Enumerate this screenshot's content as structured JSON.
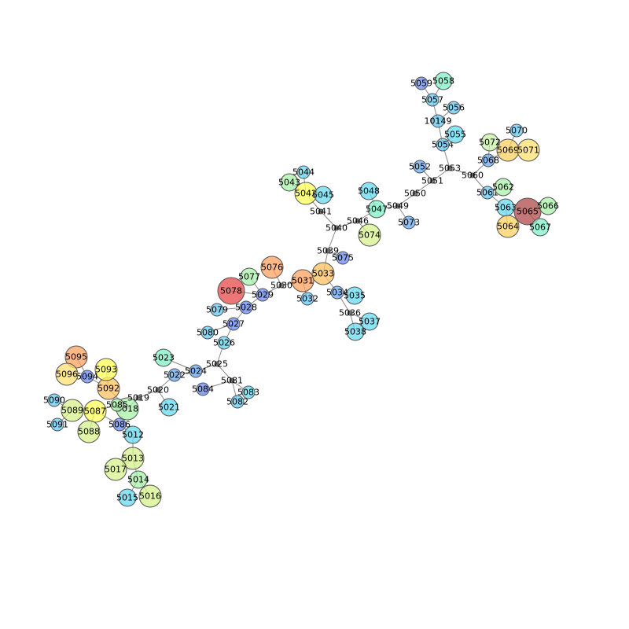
{
  "chart_data": {
    "type": "network",
    "nodes": [
      {
        "id": "5012",
        "color": "#66d9f0",
        "size": "m"
      },
      {
        "id": "5013",
        "color": "#d6f28a",
        "size": "l"
      },
      {
        "id": "5014",
        "color": "#a8f0a8",
        "size": "m"
      },
      {
        "id": "5015",
        "color": "#66d9f0",
        "size": "m"
      },
      {
        "id": "5016",
        "color": "#d6f28a",
        "size": "l"
      },
      {
        "id": "5017",
        "color": "#d6f28a",
        "size": "l"
      },
      {
        "id": "5018",
        "color": "#a8f0a8",
        "size": "l"
      },
      {
        "id": "5019",
        "color": "#555555",
        "size": "xs"
      },
      {
        "id": "5020",
        "color": "#555555",
        "size": "xs"
      },
      {
        "id": "5021",
        "color": "#66d9f0",
        "size": "m"
      },
      {
        "id": "5022",
        "color": "#6aa8f0",
        "size": "s"
      },
      {
        "id": "5023",
        "color": "#7ff0c8",
        "size": "m"
      },
      {
        "id": "5024",
        "color": "#6aa8f0",
        "size": "s"
      },
      {
        "id": "5025",
        "color": "#555555",
        "size": "xs"
      },
      {
        "id": "5026",
        "color": "#66d9f0",
        "size": "s"
      },
      {
        "id": "5027",
        "color": "#6a8af0",
        "size": "s"
      },
      {
        "id": "5028",
        "color": "#6a8af0",
        "size": "s"
      },
      {
        "id": "5029",
        "color": "#6a8af0",
        "size": "s"
      },
      {
        "id": "5030",
        "color": "#555555",
        "size": "xs"
      },
      {
        "id": "5031",
        "color": "#ffa060",
        "size": "l"
      },
      {
        "id": "5032",
        "color": "#66c8f0",
        "size": "s"
      },
      {
        "id": "5033",
        "color": "#ffc060",
        "size": "l"
      },
      {
        "id": "5034",
        "color": "#6aa8f0",
        "size": "s"
      },
      {
        "id": "5035",
        "color": "#66d9f0",
        "size": "m"
      },
      {
        "id": "5036",
        "color": "#555555",
        "size": "xs"
      },
      {
        "id": "5037",
        "color": "#66d9f0",
        "size": "m"
      },
      {
        "id": "5038",
        "color": "#66d9f0",
        "size": "m"
      },
      {
        "id": "5039",
        "color": "#555555",
        "size": "xs"
      },
      {
        "id": "5040",
        "color": "#555555",
        "size": "xs"
      },
      {
        "id": "5041",
        "color": "#555555",
        "size": "xs"
      },
      {
        "id": "5042",
        "color": "#ffff55",
        "size": "l"
      },
      {
        "id": "5043",
        "color": "#a8f0a8",
        "size": "m"
      },
      {
        "id": "5044",
        "color": "#66d9f0",
        "size": "s"
      },
      {
        "id": "5045",
        "color": "#66d9f0",
        "size": "m"
      },
      {
        "id": "5046",
        "color": "#555555",
        "size": "xs"
      },
      {
        "id": "5047",
        "color": "#7ff0c8",
        "size": "m"
      },
      {
        "id": "5048",
        "color": "#66d9f0",
        "size": "m"
      },
      {
        "id": "5049",
        "color": "#555555",
        "size": "xs"
      },
      {
        "id": "5050",
        "color": "#555555",
        "size": "xs"
      },
      {
        "id": "5051",
        "color": "#555555",
        "size": "xs"
      },
      {
        "id": "5052",
        "color": "#6aa8f0",
        "size": "s"
      },
      {
        "id": "5053",
        "color": "#555555",
        "size": "xs"
      },
      {
        "id": "5054",
        "color": "#66c8f0",
        "size": "s"
      },
      {
        "id": "5055",
        "color": "#66d9f0",
        "size": "m"
      },
      {
        "id": "10149",
        "color": "#66c8f0",
        "size": "s"
      },
      {
        "id": "5056",
        "color": "#66c8f0",
        "size": "s"
      },
      {
        "id": "5057",
        "color": "#66c8f0",
        "size": "s"
      },
      {
        "id": "5058",
        "color": "#7ff0c8",
        "size": "m"
      },
      {
        "id": "5059",
        "color": "#6a8af0",
        "size": "s"
      },
      {
        "id": "5060",
        "color": "#555555",
        "size": "xs"
      },
      {
        "id": "5061",
        "color": "#66c8f0",
        "size": "s"
      },
      {
        "id": "5062",
        "color": "#a8f0a8",
        "size": "m"
      },
      {
        "id": "5063",
        "color": "#66d9f0",
        "size": "m"
      },
      {
        "id": "5064",
        "color": "#ffd060",
        "size": "l"
      },
      {
        "id": "5065",
        "color": "#b04a4a",
        "size": "xl"
      },
      {
        "id": "5066",
        "color": "#a8f0a8",
        "size": "m"
      },
      {
        "id": "5067",
        "color": "#7ff0c8",
        "size": "m"
      },
      {
        "id": "5068",
        "color": "#6aa8f0",
        "size": "s"
      },
      {
        "id": "5069",
        "color": "#ffd060",
        "size": "l"
      },
      {
        "id": "5070",
        "color": "#66c8f0",
        "size": "s"
      },
      {
        "id": "5071",
        "color": "#ffe070",
        "size": "l"
      },
      {
        "id": "5072",
        "color": "#c8f0a8",
        "size": "m"
      },
      {
        "id": "5073",
        "color": "#6aa8f0",
        "size": "s"
      },
      {
        "id": "5074",
        "color": "#d6f28a",
        "size": "l"
      },
      {
        "id": "5075",
        "color": "#6a8af0",
        "size": "s"
      },
      {
        "id": "5076",
        "color": "#ffa060",
        "size": "l"
      },
      {
        "id": "5077",
        "color": "#a8f0a8",
        "size": "m"
      },
      {
        "id": "5078",
        "color": "#e84848",
        "size": "xl"
      },
      {
        "id": "5079",
        "color": "#66c8f0",
        "size": "s"
      },
      {
        "id": "5080",
        "color": "#66c8f0",
        "size": "s"
      },
      {
        "id": "5081",
        "color": "#555555",
        "size": "xs"
      },
      {
        "id": "5082",
        "color": "#66c8f0",
        "size": "s"
      },
      {
        "id": "5083",
        "color": "#66d9f0",
        "size": "s"
      },
      {
        "id": "5084",
        "color": "#6a8af0",
        "size": "s"
      },
      {
        "id": "5085",
        "color": "#a8f0a8",
        "size": "s"
      },
      {
        "id": "5086",
        "color": "#6a8af0",
        "size": "s"
      },
      {
        "id": "5087",
        "color": "#ffff55",
        "size": "l"
      },
      {
        "id": "5088",
        "color": "#d6f28a",
        "size": "l"
      },
      {
        "id": "5089",
        "color": "#d6f28a",
        "size": "l"
      },
      {
        "id": "5090",
        "color": "#66c8f0",
        "size": "s"
      },
      {
        "id": "5091",
        "color": "#66c8f0",
        "size": "s"
      },
      {
        "id": "5092",
        "color": "#ffc060",
        "size": "l"
      },
      {
        "id": "5093",
        "color": "#ffff55",
        "size": "l"
      },
      {
        "id": "5094",
        "color": "#6a8af0",
        "size": "s"
      },
      {
        "id": "5095",
        "color": "#ffa060",
        "size": "l"
      },
      {
        "id": "5096",
        "color": "#ffe070",
        "size": "l"
      }
    ],
    "edges": [
      [
        "5012",
        "5013"
      ],
      [
        "5013",
        "5017"
      ],
      [
        "5013",
        "5014"
      ],
      [
        "5014",
        "5015"
      ],
      [
        "5014",
        "5016"
      ],
      [
        "5012",
        "5086"
      ],
      [
        "5086",
        "5087"
      ],
      [
        "5087",
        "5088"
      ],
      [
        "5087",
        "5089"
      ],
      [
        "5089",
        "5090"
      ],
      [
        "5089",
        "5091"
      ],
      [
        "5087",
        "5085"
      ],
      [
        "5085",
        "5018"
      ],
      [
        "5018",
        "5019"
      ],
      [
        "5019",
        "5020"
      ],
      [
        "5020",
        "5021"
      ],
      [
        "5020",
        "5022"
      ],
      [
        "5022",
        "5024"
      ],
      [
        "5024",
        "5023"
      ],
      [
        "5024",
        "5025"
      ],
      [
        "5025",
        "5081"
      ],
      [
        "5081",
        "5082"
      ],
      [
        "5081",
        "5083"
      ],
      [
        "5081",
        "5084"
      ],
      [
        "5025",
        "5026"
      ],
      [
        "5026",
        "5027"
      ],
      [
        "5027",
        "5080"
      ],
      [
        "5027",
        "5028"
      ],
      [
        "5028",
        "5079"
      ],
      [
        "5028",
        "5029"
      ],
      [
        "5029",
        "5078"
      ],
      [
        "5029",
        "5077"
      ],
      [
        "5029",
        "5030"
      ],
      [
        "5030",
        "5076"
      ],
      [
        "5030",
        "5031"
      ],
      [
        "5031",
        "5032"
      ],
      [
        "5031",
        "5033"
      ],
      [
        "5033",
        "5034"
      ],
      [
        "5034",
        "5035"
      ],
      [
        "5034",
        "5036"
      ],
      [
        "5036",
        "5037"
      ],
      [
        "5036",
        "5038"
      ],
      [
        "5033",
        "5039"
      ],
      [
        "5039",
        "5075"
      ],
      [
        "5039",
        "5040"
      ],
      [
        "5040",
        "5041"
      ],
      [
        "5041",
        "5042"
      ],
      [
        "5042",
        "5043"
      ],
      [
        "5042",
        "5044"
      ],
      [
        "5042",
        "5045"
      ],
      [
        "5040",
        "5046"
      ],
      [
        "5046",
        "5074"
      ],
      [
        "5046",
        "5047"
      ],
      [
        "5047",
        "5048"
      ],
      [
        "5047",
        "5049"
      ],
      [
        "5049",
        "5073"
      ],
      [
        "5049",
        "5050"
      ],
      [
        "5050",
        "5051"
      ],
      [
        "5051",
        "5052"
      ],
      [
        "5051",
        "5053"
      ],
      [
        "5053",
        "5054"
      ],
      [
        "5054",
        "5055"
      ],
      [
        "5054",
        "10149"
      ],
      [
        "10149",
        "5056"
      ],
      [
        "10149",
        "5057"
      ],
      [
        "5057",
        "5058"
      ],
      [
        "5057",
        "5059"
      ],
      [
        "5053",
        "5060"
      ],
      [
        "5060",
        "5061"
      ],
      [
        "5061",
        "5062"
      ],
      [
        "5061",
        "5063"
      ],
      [
        "5063",
        "5064"
      ],
      [
        "5063",
        "5065"
      ],
      [
        "5065",
        "5066"
      ],
      [
        "5065",
        "5067"
      ],
      [
        "5060",
        "5068"
      ],
      [
        "5068",
        "5069"
      ],
      [
        "5069",
        "5070"
      ],
      [
        "5069",
        "5071"
      ],
      [
        "5068",
        "5072"
      ],
      [
        "5018",
        "5092"
      ],
      [
        "5092",
        "5093"
      ],
      [
        "5092",
        "5094"
      ],
      [
        "5094",
        "5095"
      ],
      [
        "5094",
        "5096"
      ]
    ]
  }
}
